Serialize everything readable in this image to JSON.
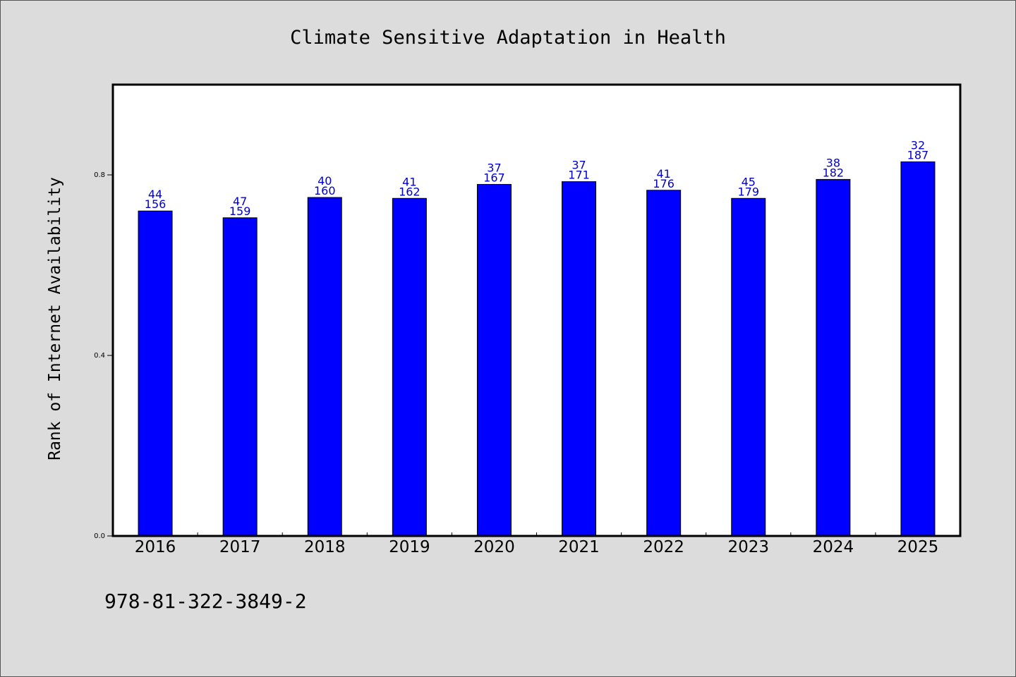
{
  "chart_data": {
    "type": "bar",
    "title": "Climate Sensitive Adaptation in Health",
    "xlabel": "",
    "ylabel": "Rank of Internet Availability",
    "categories": [
      "2016",
      "2017",
      "2018",
      "2019",
      "2020",
      "2021",
      "2022",
      "2023",
      "2024",
      "2025"
    ],
    "values": [
      0.72,
      0.705,
      0.75,
      0.748,
      0.779,
      0.785,
      0.766,
      0.748,
      0.79,
      0.829
    ],
    "label_top": [
      "44",
      "47",
      "40",
      "41",
      "37",
      "37",
      "41",
      "45",
      "38",
      "32"
    ],
    "label_bottom": [
      "156",
      "159",
      "160",
      "162",
      "167",
      "171",
      "176",
      "179",
      "182",
      "187"
    ],
    "yticks": [
      "0.0",
      "0.4",
      "0.8"
    ],
    "ytick_values": [
      0.0,
      0.4,
      0.8
    ],
    "ylim": [
      0,
      1.0
    ],
    "grid": false,
    "bar_color": "#0000ff",
    "label_color": "#0000cc"
  },
  "footnote": "978-81-322-3849-2"
}
